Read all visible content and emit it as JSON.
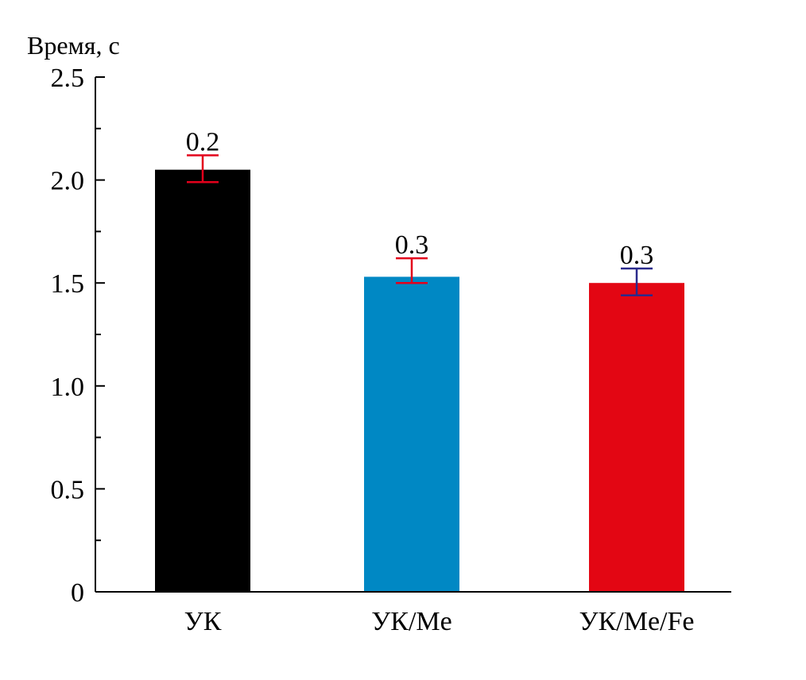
{
  "chart_data": {
    "type": "bar",
    "title": "",
    "xlabel": "",
    "ylabel": "Время, с",
    "ylim": [
      0,
      2.5
    ],
    "major_ticks": [
      0,
      0.5,
      1.0,
      1.5,
      2.0,
      2.5
    ],
    "tick_labels": [
      "0",
      "0.5",
      "1.0",
      "1.5",
      "2.0",
      "2.5"
    ],
    "minor_ticks": [
      0.25,
      0.75,
      1.25,
      1.75,
      2.25
    ],
    "grid": false,
    "legend": "none",
    "categories": [
      "УК",
      "УК/Me",
      "УК/Me/Fe"
    ],
    "values": [
      2.05,
      1.53,
      1.5
    ],
    "error_low": [
      1.99,
      1.5,
      1.44
    ],
    "error_high": [
      2.12,
      1.62,
      1.57
    ],
    "data_labels": [
      "0.2",
      "0.3",
      "0.3"
    ],
    "bar_colors": [
      "#000000",
      "#0088c4",
      "#e30613"
    ],
    "errorbar_colors": [
      "#e3001b",
      "#e3001b",
      "#2a2a8c"
    ]
  }
}
